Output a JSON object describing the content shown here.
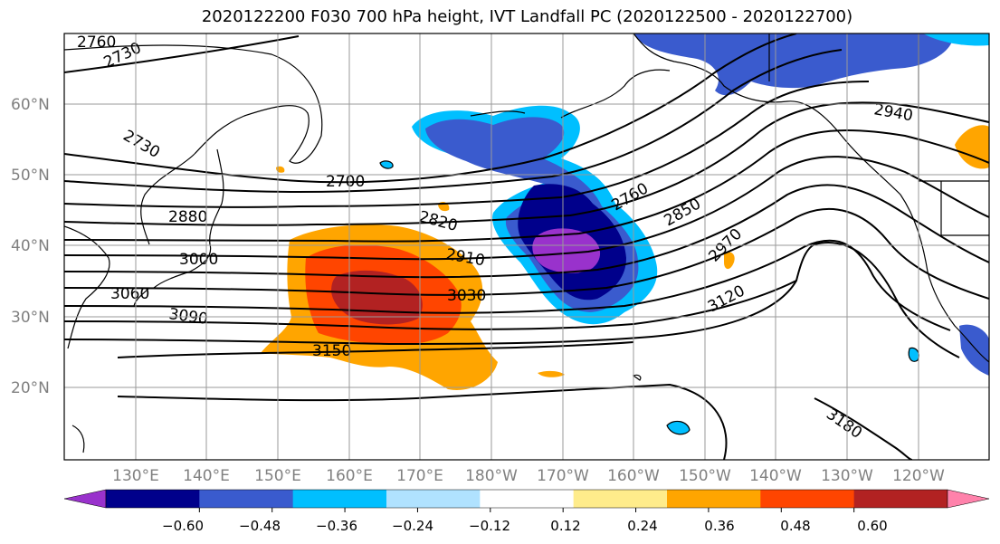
{
  "title": "2020122200 F030 700 hPa height, IVT Landfall PC (2020122500 - 2020122700)",
  "lat_ticks": [
    "60°N",
    "50°N",
    "40°N",
    "30°N",
    "20°N"
  ],
  "lon_ticks": [
    "130°E",
    "140°E",
    "150°E",
    "160°E",
    "170°E",
    "180°W",
    "170°W",
    "160°W",
    "150°W",
    "140°W",
    "130°W",
    "120°W"
  ],
  "contour_labels": [
    "2760",
    "2730",
    "2730",
    "2700",
    "2880",
    "2820",
    "2760",
    "2850",
    "2940",
    "2910",
    "2970",
    "3000",
    "3060",
    "3030",
    "3090",
    "3120",
    "3150",
    "3180"
  ],
  "colorbar": {
    "colors": [
      "#9932CC",
      "#00008B",
      "#3A5BCE",
      "#00BFFF",
      "#B0E2FF",
      "#FFFFFF",
      "#FFEC8B",
      "#FFA500",
      "#FF4500",
      "#B22222",
      "#FF82AB"
    ],
    "tick_labels": [
      "−0.60",
      "−0.48",
      "−0.36",
      "−0.24",
      "−0.12",
      "0.12",
      "0.24",
      "0.36",
      "0.48",
      "0.60"
    ]
  }
}
